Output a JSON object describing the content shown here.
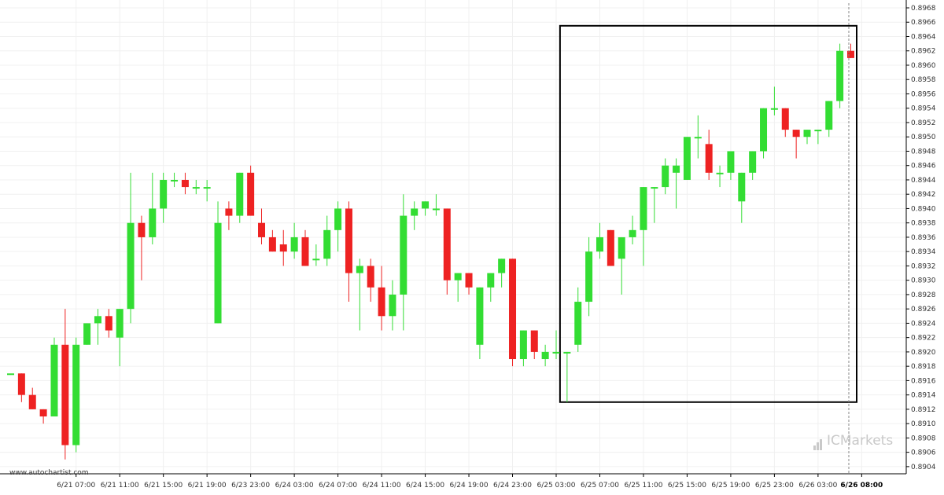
{
  "source_text": "www.autochartist.com",
  "watermark_text": "ICMarkets",
  "colors": {
    "up": "#33dd33",
    "down": "#ee2222",
    "grid": "#f0f0f0",
    "axis": "#000000",
    "highlight_box": "#000000",
    "cursor_line": "#888888"
  },
  "chart_data": {
    "type": "candlestick",
    "title": "",
    "xlabel": "",
    "ylabel": "",
    "ylim": [
      0.8903,
      0.8968
    ],
    "y_ticks": [
      "0.8904",
      "0.8906",
      "0.8908",
      "0.8910",
      "0.8912",
      "0.8914",
      "0.8916",
      "0.8918",
      "0.8920",
      "0.8922",
      "0.8924",
      "0.8926",
      "0.8928",
      "0.8930",
      "0.8932",
      "0.8934",
      "0.8936",
      "0.8938",
      "0.8940",
      "0.8942",
      "0.8944",
      "0.8946",
      "0.8948",
      "0.8950",
      "0.8952",
      "0.8954",
      "0.8956",
      "0.8958",
      "0.8960",
      "0.8962",
      "0.8964",
      "0.8966",
      "0.8968"
    ],
    "x_ticks": [
      {
        "index": 6,
        "label": "6/21 07:00"
      },
      {
        "index": 10,
        "label": "6/21 11:00"
      },
      {
        "index": 14,
        "label": "6/21 15:00"
      },
      {
        "index": 18,
        "label": "6/21 19:00"
      },
      {
        "index": 22,
        "label": "6/23 23:00"
      },
      {
        "index": 26,
        "label": "6/24 03:00"
      },
      {
        "index": 30,
        "label": "6/24 07:00"
      },
      {
        "index": 34,
        "label": "6/24 11:00"
      },
      {
        "index": 38,
        "label": "6/24 15:00"
      },
      {
        "index": 42,
        "label": "6/24 19:00"
      },
      {
        "index": 46,
        "label": "6/24 23:00"
      },
      {
        "index": 50,
        "label": "6/25 03:00"
      },
      {
        "index": 54,
        "label": "6/25 07:00"
      },
      {
        "index": 58,
        "label": "6/25 11:00"
      },
      {
        "index": 62,
        "label": "6/25 15:00"
      },
      {
        "index": 66,
        "label": "6/25 19:00"
      },
      {
        "index": 70,
        "label": "6/25 23:00"
      },
      {
        "index": 74,
        "label": "6/26 03:00"
      },
      {
        "index": 78,
        "label": "6/26 08:00",
        "highlight": true
      }
    ],
    "candles": [
      [
        0.8917,
        0.8917,
        0.8917,
        0.8917
      ],
      [
        0.8917,
        0.8917,
        0.8913,
        0.8914
      ],
      [
        0.8914,
        0.8915,
        0.8912,
        0.8912
      ],
      [
        0.8912,
        0.8912,
        0.891,
        0.8911
      ],
      [
        0.8911,
        0.8922,
        0.8911,
        0.8921
      ],
      [
        0.8921,
        0.8926,
        0.8905,
        0.8907
      ],
      [
        0.8907,
        0.8922,
        0.8906,
        0.8921
      ],
      [
        0.8921,
        0.8924,
        0.8921,
        0.8924
      ],
      [
        0.8924,
        0.8926,
        0.8921,
        0.8925
      ],
      [
        0.8925,
        0.8926,
        0.8922,
        0.8923
      ],
      [
        0.8922,
        0.8926,
        0.8918,
        0.8926
      ],
      [
        0.8926,
        0.8945,
        0.8924,
        0.8938
      ],
      [
        0.8938,
        0.8939,
        0.893,
        0.8936
      ],
      [
        0.8936,
        0.8945,
        0.8935,
        0.894
      ],
      [
        0.894,
        0.8945,
        0.8938,
        0.8944
      ],
      [
        0.8944,
        0.8945,
        0.8943,
        0.8944
      ],
      [
        0.8944,
        0.8945,
        0.8942,
        0.8943
      ],
      [
        0.8943,
        0.8944,
        0.8942,
        0.8943
      ],
      [
        0.8943,
        0.8944,
        0.8941,
        0.8943
      ],
      [
        0.8924,
        0.8941,
        0.8924,
        0.8938
      ],
      [
        0.894,
        0.8941,
        0.8937,
        0.8939
      ],
      [
        0.8939,
        0.8945,
        0.8938,
        0.8945
      ],
      [
        0.8945,
        0.8946,
        0.8939,
        0.8939
      ],
      [
        0.8938,
        0.894,
        0.8935,
        0.8936
      ],
      [
        0.8936,
        0.8937,
        0.8934,
        0.8934
      ],
      [
        0.8935,
        0.8937,
        0.8932,
        0.8934
      ],
      [
        0.8934,
        0.8938,
        0.8933,
        0.8936
      ],
      [
        0.8936,
        0.8937,
        0.8932,
        0.8932
      ],
      [
        0.8933,
        0.8935,
        0.8932,
        0.8933
      ],
      [
        0.8933,
        0.8939,
        0.8932,
        0.8937
      ],
      [
        0.8937,
        0.8941,
        0.8934,
        0.894
      ],
      [
        0.894,
        0.8941,
        0.8927,
        0.8931
      ],
      [
        0.8931,
        0.8933,
        0.8923,
        0.8932
      ],
      [
        0.8932,
        0.8933,
        0.8927,
        0.8929
      ],
      [
        0.8929,
        0.8932,
        0.8923,
        0.8925
      ],
      [
        0.8925,
        0.893,
        0.8923,
        0.8928
      ],
      [
        0.8928,
        0.8942,
        0.8923,
        0.8939
      ],
      [
        0.8939,
        0.8941,
        0.8937,
        0.894
      ],
      [
        0.894,
        0.8941,
        0.8939,
        0.8941
      ],
      [
        0.894,
        0.8942,
        0.8939,
        0.894
      ],
      [
        0.894,
        0.894,
        0.8928,
        0.893
      ],
      [
        0.893,
        0.8931,
        0.8927,
        0.8931
      ],
      [
        0.8931,
        0.8931,
        0.8928,
        0.8929
      ],
      [
        0.8921,
        0.8929,
        0.8919,
        0.8929
      ],
      [
        0.8929,
        0.8931,
        0.8927,
        0.8931
      ],
      [
        0.8931,
        0.8933,
        0.8929,
        0.8933
      ],
      [
        0.8933,
        0.8933,
        0.8918,
        0.8919
      ],
      [
        0.8919,
        0.8923,
        0.8918,
        0.8923
      ],
      [
        0.8923,
        0.8923,
        0.8919,
        0.892
      ],
      [
        0.8919,
        0.8921,
        0.8918,
        0.892
      ],
      [
        0.892,
        0.8923,
        0.8919,
        0.892
      ],
      [
        0.892,
        0.892,
        0.8913,
        0.892
      ],
      [
        0.8921,
        0.8929,
        0.892,
        0.8927
      ],
      [
        0.8927,
        0.8936,
        0.8925,
        0.8934
      ],
      [
        0.8934,
        0.8938,
        0.8933,
        0.8936
      ],
      [
        0.8937,
        0.8937,
        0.8932,
        0.8932
      ],
      [
        0.8933,
        0.8936,
        0.8928,
        0.8936
      ],
      [
        0.8936,
        0.8939,
        0.8935,
        0.8937
      ],
      [
        0.8937,
        0.8943,
        0.8932,
        0.8943
      ],
      [
        0.8943,
        0.8943,
        0.8938,
        0.8943
      ],
      [
        0.8943,
        0.8947,
        0.8942,
        0.8946
      ],
      [
        0.8945,
        0.8947,
        0.894,
        0.8946
      ],
      [
        0.8944,
        0.895,
        0.8944,
        0.895
      ],
      [
        0.895,
        0.8953,
        0.8947,
        0.895
      ],
      [
        0.8949,
        0.8951,
        0.8944,
        0.8945
      ],
      [
        0.8945,
        0.8946,
        0.8943,
        0.8945
      ],
      [
        0.8945,
        0.8948,
        0.8944,
        0.8948
      ],
      [
        0.8941,
        0.8945,
        0.8938,
        0.8945
      ],
      [
        0.8945,
        0.8948,
        0.8944,
        0.8948
      ],
      [
        0.8948,
        0.8954,
        0.8947,
        0.8954
      ],
      [
        0.8954,
        0.8957,
        0.8953,
        0.8954
      ],
      [
        0.8954,
        0.8954,
        0.895,
        0.8951
      ],
      [
        0.8951,
        0.8951,
        0.8947,
        0.895
      ],
      [
        0.895,
        0.8951,
        0.8949,
        0.8951
      ],
      [
        0.8951,
        0.8951,
        0.8949,
        0.8951
      ],
      [
        0.8951,
        0.8955,
        0.895,
        0.8955
      ],
      [
        0.8955,
        0.8963,
        0.8954,
        0.8962
      ],
      [
        0.8962,
        0.8963,
        0.8961,
        0.8961
      ]
    ],
    "highlight_box": {
      "from_index": 51,
      "to_index": 77,
      "price_top": 0.89655,
      "price_bottom": 0.8913
    },
    "cursor_index": 77,
    "grid": true,
    "legend": "none"
  }
}
